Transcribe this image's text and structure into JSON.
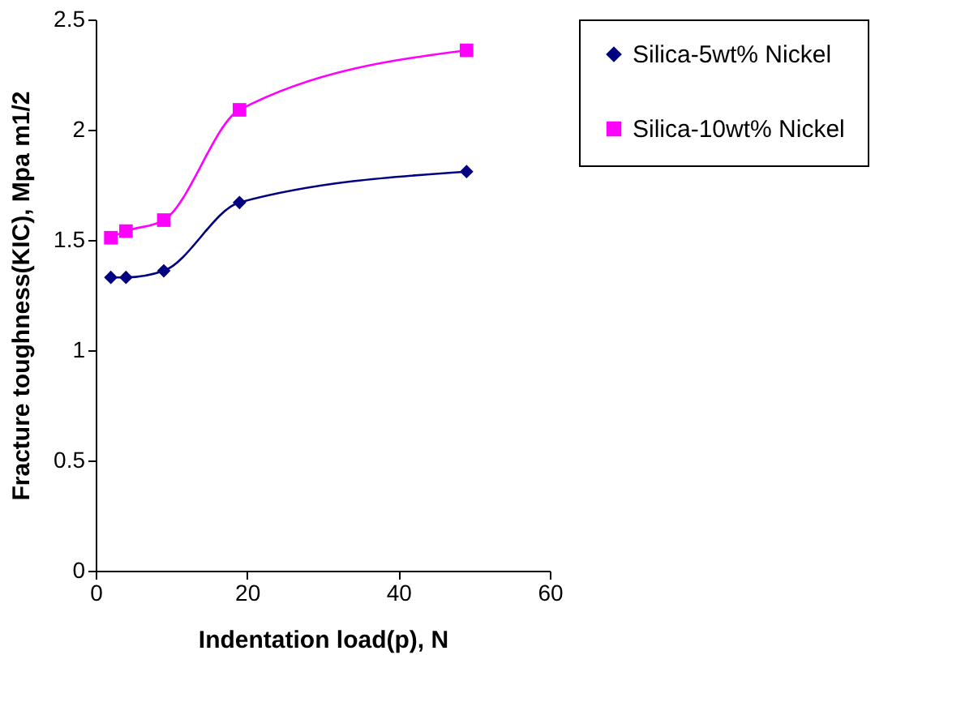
{
  "chart_data": {
    "type": "line",
    "xlabel": "Indentation load(p), N",
    "ylabel": "Fracture toughness(KIC), Mpa m1/2",
    "x": [
      2,
      4,
      9,
      19,
      49
    ],
    "series": [
      {
        "name": "Silica-5wt% Nickel",
        "color": "#000080",
        "marker": "diamond",
        "values": [
          1.33,
          1.33,
          1.36,
          1.67,
          1.81
        ]
      },
      {
        "name": "Silica-10wt% Nickel",
        "color": "#ff00ff",
        "marker": "square",
        "values": [
          1.51,
          1.54,
          1.59,
          2.09,
          2.36
        ]
      }
    ],
    "xlim": [
      0,
      60
    ],
    "xticks": [
      0,
      20,
      40,
      60
    ],
    "ylim": [
      0,
      2.5
    ],
    "yticks": [
      0,
      0.5,
      1,
      1.5,
      2,
      2.5
    ],
    "grid": false,
    "legend": "right",
    "line_style": "solid"
  }
}
